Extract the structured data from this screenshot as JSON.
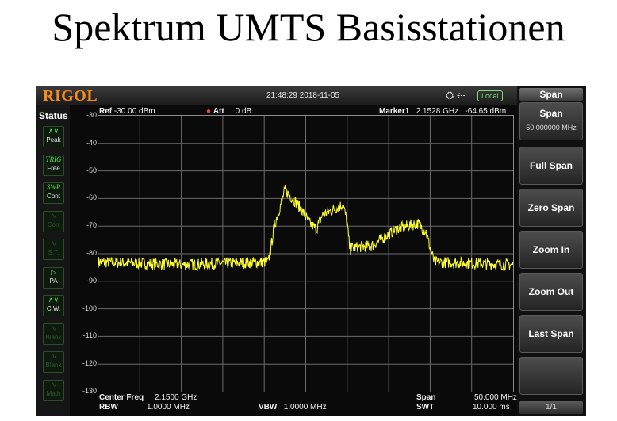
{
  "slide_title": "Spektrum UMTS Basisstationen",
  "device": {
    "brand": "RIGOL",
    "datetime": "21:48:29 2018-11-05",
    "remote_status": "Local",
    "accent_color": "#f58a1f",
    "trace_color": "#ffff33"
  },
  "status_panel": {
    "title": "Status",
    "buttons": [
      {
        "top": "",
        "label": "Peak",
        "active": true,
        "icon": "peak-icon"
      },
      {
        "top": "TRIG",
        "label": "Free",
        "active": true,
        "icon": "trigger-icon"
      },
      {
        "top": "SWP",
        "label": "Cont",
        "active": true,
        "icon": "sweep-icon"
      },
      {
        "top": "",
        "label": "Corr",
        "active": false,
        "icon": "correction-icon"
      },
      {
        "top": "",
        "label": "S.T.",
        "active": false,
        "icon": "signal-track-icon"
      },
      {
        "top": "",
        "label": "PA",
        "active": true,
        "icon": "preamp-icon"
      },
      {
        "top": "",
        "label": "C.W.",
        "active": true,
        "icon": "cw-icon"
      },
      {
        "top": "",
        "label": "Blank",
        "active": false,
        "icon": "blank-icon"
      },
      {
        "top": "",
        "label": "Blank",
        "active": false,
        "icon": "blank-icon"
      },
      {
        "top": "",
        "label": "Math",
        "active": false,
        "icon": "math-icon"
      }
    ]
  },
  "header": {
    "ref_label": "Ref",
    "ref_value": "-30.00 dBm",
    "att_label": "Att",
    "att_value": "0 dB",
    "marker_label": "Marker1",
    "marker_freq": "2.1528 GHz",
    "marker_level": "-64.65 dBm"
  },
  "footer": {
    "center_freq_label": "Center Freq",
    "center_freq_value": "2.1500 GHz",
    "rbw_label": "RBW",
    "rbw_value": "1.0000 MHz",
    "vbw_label": "VBW",
    "vbw_value": "1.0000 MHz",
    "span_label": "Span",
    "span_value": "50.000 MHz",
    "swt_label": "SWT",
    "swt_value": "10.000 ms"
  },
  "softkeys": {
    "title": "Span",
    "items": [
      {
        "label": "Span",
        "value": "50.000000 MHz"
      },
      {
        "label": "Full Span"
      },
      {
        "label": "Zero Span"
      },
      {
        "label": "Zoom In"
      },
      {
        "label": "Zoom Out"
      },
      {
        "label": "Last Span"
      },
      {
        "label": ""
      }
    ],
    "page": "1/1"
  },
  "chart_data": {
    "type": "line",
    "y_ticks": [
      "-30",
      "-40",
      "-50",
      "-60",
      "-70",
      "-80",
      "-90",
      "-100",
      "-110",
      "-120",
      "-130"
    ],
    "ylim": [
      -130,
      -30
    ],
    "xlim_ghz": [
      2.125,
      2.175
    ],
    "grid": true,
    "series": [
      {
        "color": "#ffff33",
        "x": [
          2.125,
          2.135,
          2.1455,
          2.1458,
          2.1462,
          2.1475,
          2.149,
          2.1505,
          2.1513,
          2.152,
          2.154,
          2.1545,
          2.155,
          2.1553,
          2.158,
          2.161,
          2.1635,
          2.1645,
          2.165,
          2.1655,
          2.175
        ],
        "y": [
          -83,
          -84,
          -83,
          -78,
          -70,
          -57,
          -62,
          -69,
          -71,
          -66,
          -63,
          -62,
          -69,
          -78,
          -77,
          -71,
          -69,
          -72,
          -78,
          -83,
          -84
        ]
      }
    ]
  }
}
